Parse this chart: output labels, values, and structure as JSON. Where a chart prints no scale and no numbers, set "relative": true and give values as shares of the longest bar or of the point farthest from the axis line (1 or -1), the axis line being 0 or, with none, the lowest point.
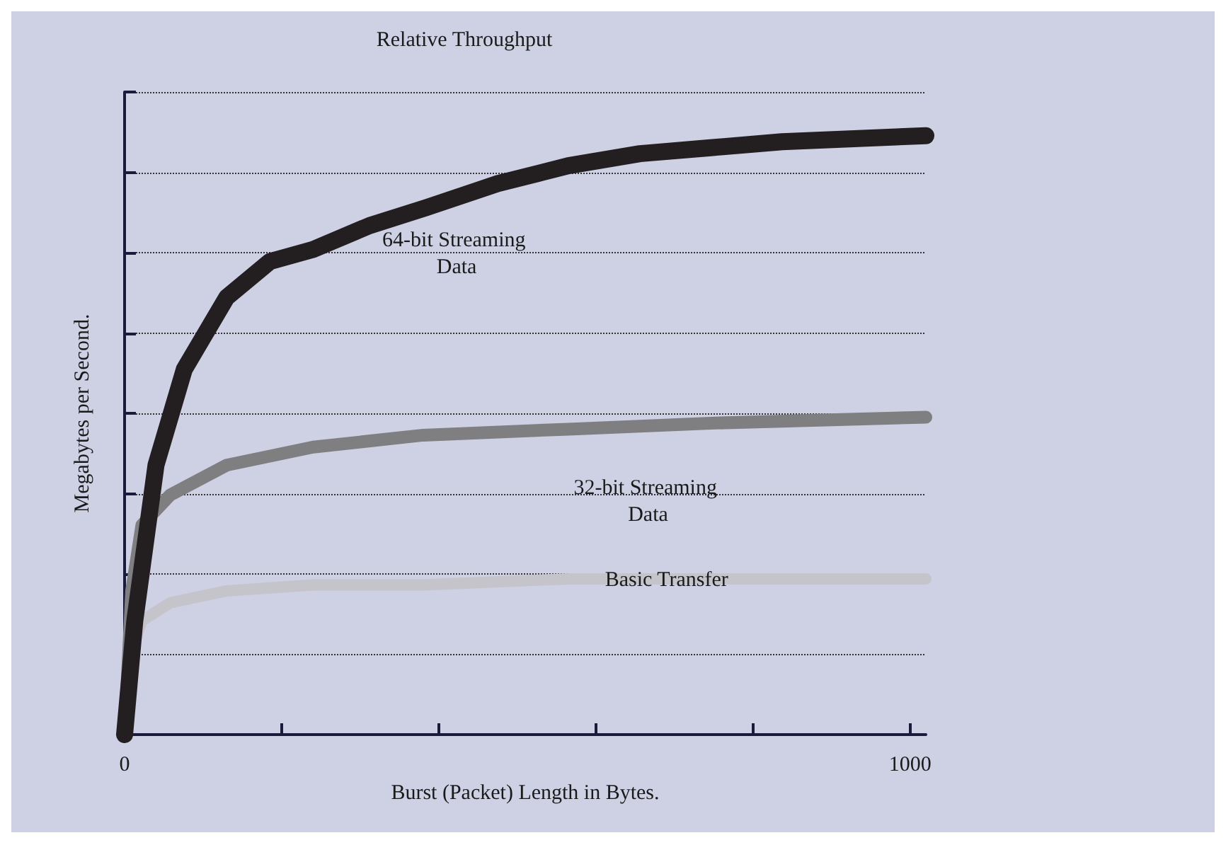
{
  "chart_data": {
    "type": "line",
    "title": "Relative Throughput",
    "xlabel": "Burst (Packet) Length in Bytes.",
    "ylabel": "Megabytes per Second.",
    "relative": true,
    "xlim": [
      0,
      1020
    ],
    "xticks": [
      0,
      {
        "value": 200,
        "label": null
      },
      {
        "value": 400,
        "label": null
      },
      {
        "value": 600,
        "label": null
      },
      {
        "value": 800,
        "label": null
      },
      1000
    ],
    "grid": "y",
    "legend": false,
    "line_style": "solid",
    "series": [
      {
        "name": "64-bit Streaming Data",
        "color": "#231f20",
        "x": [
          0,
          13,
          40,
          76,
          130,
          185,
          240,
          312,
          384,
          475,
          565,
          656,
          746,
          837,
          1020
        ],
        "values": [
          0,
          0.19,
          0.45,
          0.61,
          0.73,
          0.79,
          0.81,
          0.85,
          0.88,
          0.92,
          0.95,
          0.97,
          0.98,
          0.99,
          1
        ]
      },
      {
        "name": "32-bit Streaming Data",
        "color": "#7f7f82",
        "x": [
          0,
          9,
          22,
          58,
          130,
          240,
          380,
          565,
          746,
          1020
        ],
        "values": [
          0,
          0.24,
          0.35,
          0.4,
          0.45,
          0.48,
          0.5,
          0.51,
          0.52,
          0.53
        ]
      },
      {
        "name": "Basic Transfer",
        "color": "#c4c4ca",
        "x": [
          0,
          9,
          22,
          58,
          130,
          240,
          380,
          565,
          1020
        ],
        "values": [
          0,
          0.14,
          0.19,
          0.22,
          0.24,
          0.25,
          0.25,
          0.26,
          0.26
        ]
      }
    ]
  }
}
